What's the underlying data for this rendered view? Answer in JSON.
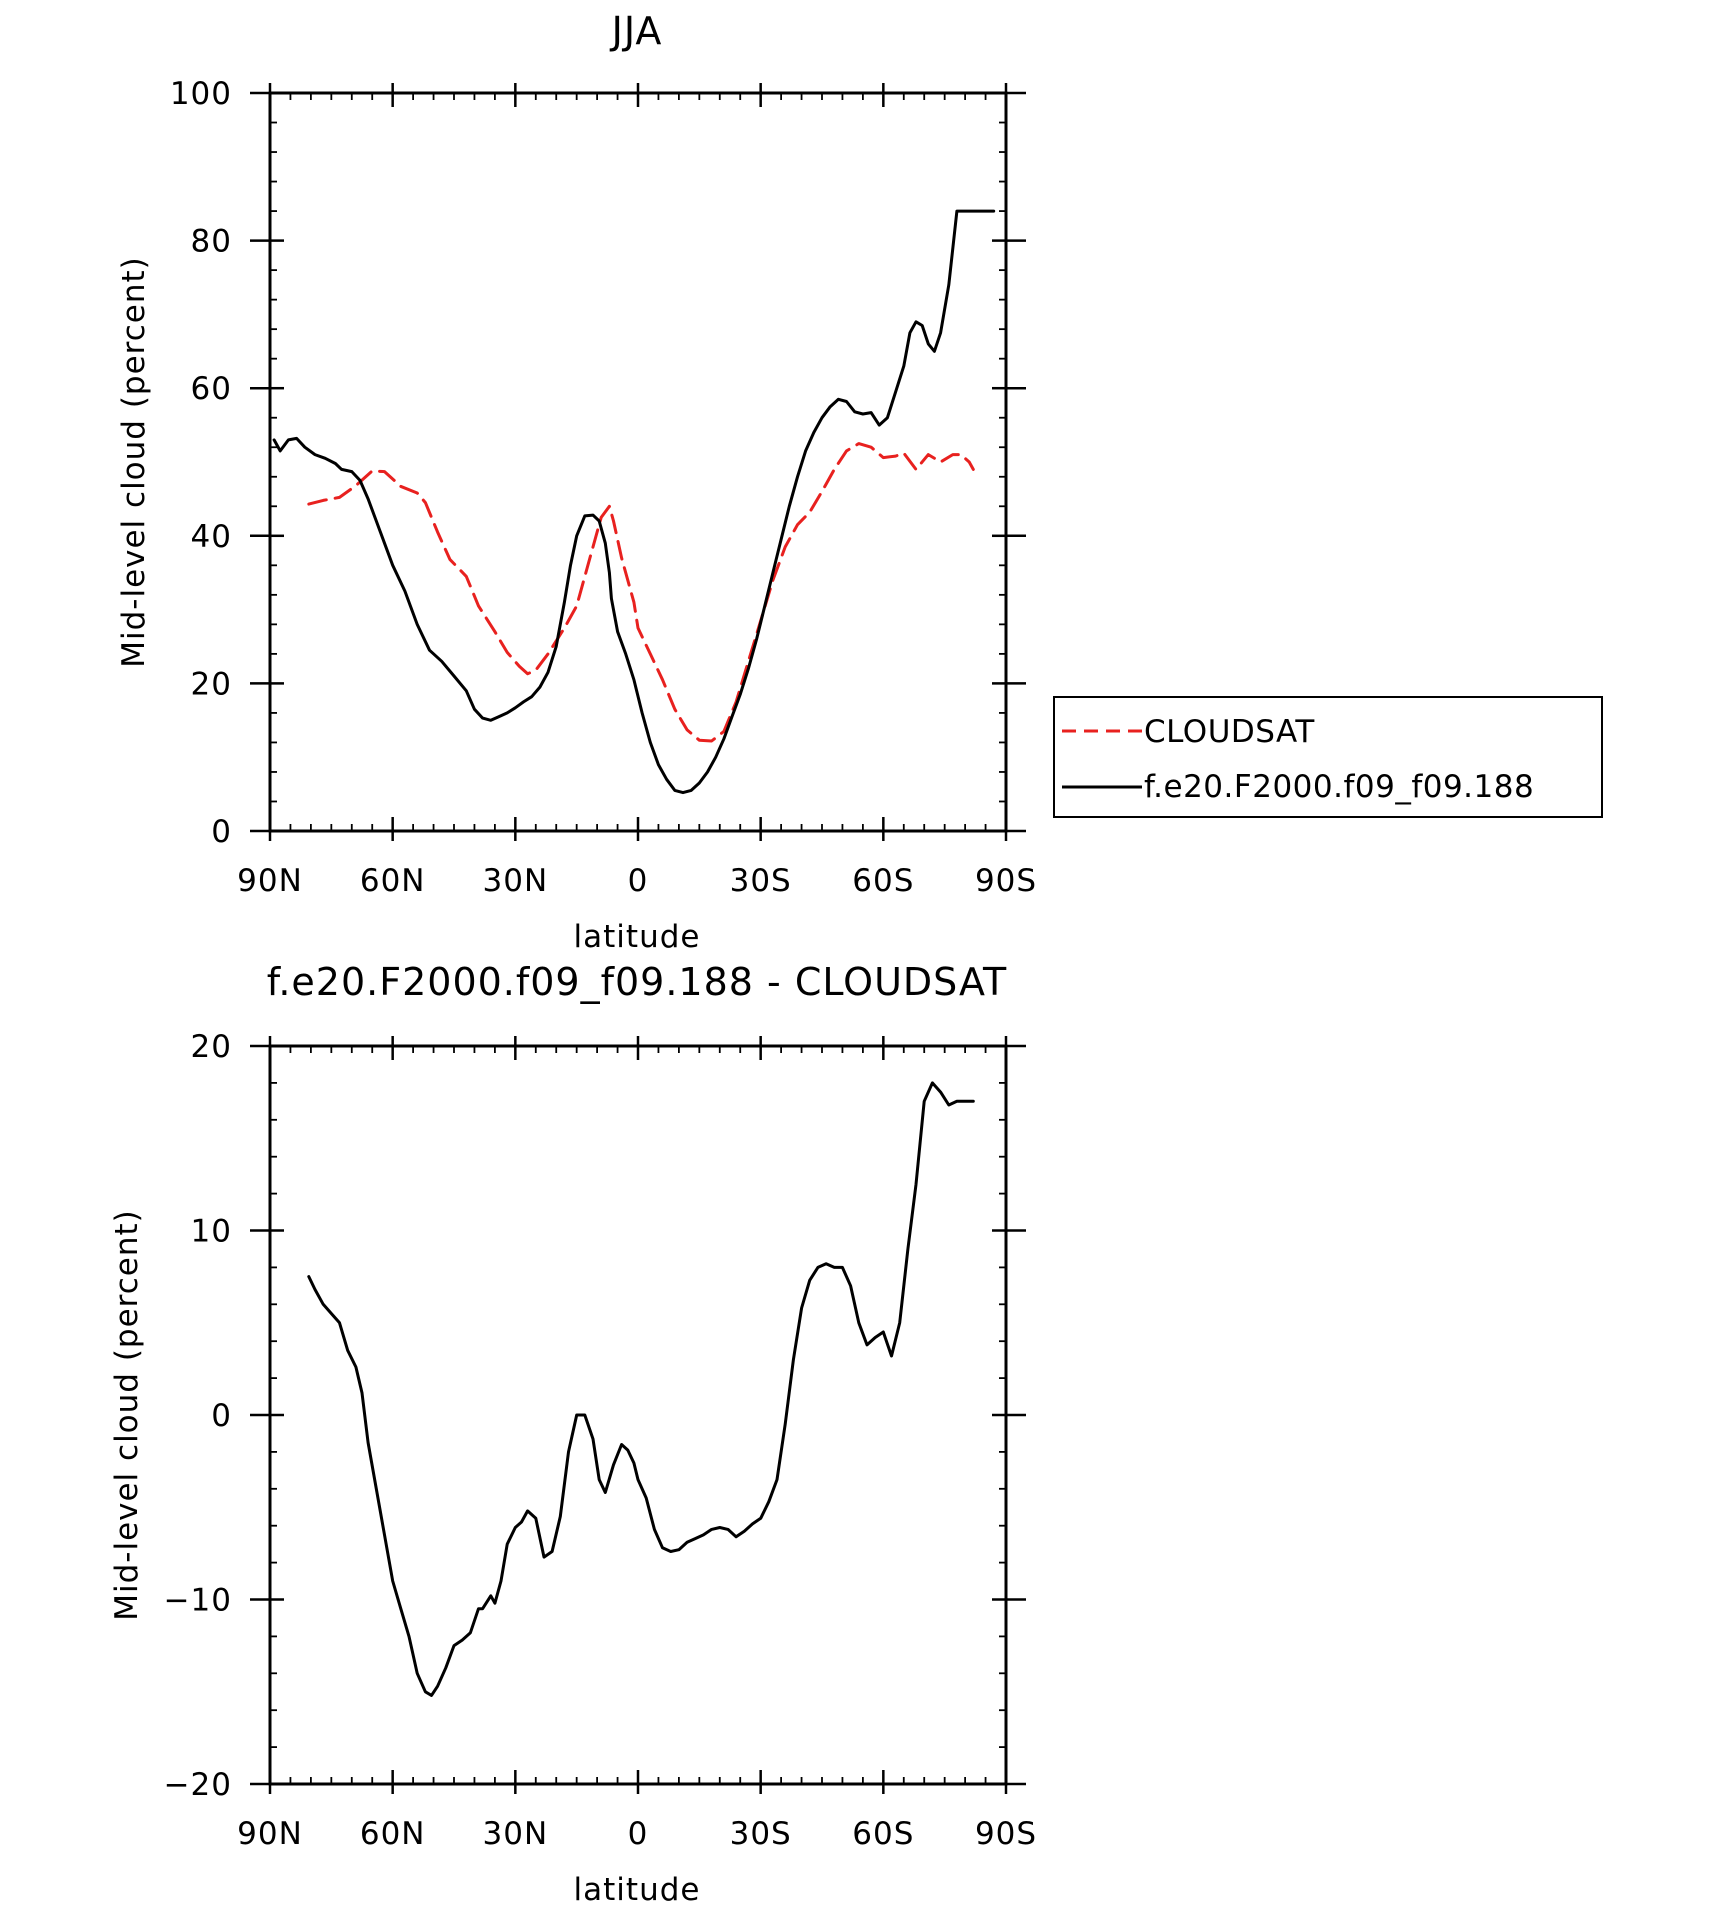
{
  "chart_data": [
    {
      "type": "line",
      "title": "JJA",
      "xlabel": "latitude",
      "ylabel": "Mid-level cloud (percent)",
      "xlim": [
        90,
        -90
      ],
      "ylim": [
        0,
        100
      ],
      "xticks": [
        90,
        60,
        30,
        0,
        -30,
        -60,
        -90
      ],
      "xtick_labels": [
        "90N",
        "60N",
        "30N",
        "0",
        "30S",
        "60S",
        "90S"
      ],
      "yticks": [
        0,
        20,
        40,
        60,
        80,
        100
      ],
      "ytick_labels": [
        "0",
        "20",
        "40",
        "60",
        "80",
        "100"
      ],
      "grid": false,
      "legend": {
        "placement": "right",
        "entries": [
          "CLOUDSAT",
          "f.e20.F2000.f09_f09.188"
        ]
      },
      "series": [
        {
          "name": "CLOUDSAT",
          "color": "#e8211f",
          "dash": true,
          "x": [
            80.5,
            77,
            73,
            69,
            65,
            62,
            58,
            54,
            52,
            49,
            46,
            42,
            39,
            35,
            32,
            29,
            27,
            25,
            22,
            18,
            15,
            12,
            9,
            7,
            6,
            4,
            1,
            0,
            -3,
            -6,
            -9,
            -12,
            -15,
            -18,
            -21,
            -24,
            -27,
            -30,
            -33,
            -36,
            -39,
            -42,
            -45,
            -48,
            -51,
            -54,
            -57,
            -60,
            -63,
            -65,
            -68,
            -71,
            -74,
            -77,
            -79,
            -81,
            -82
          ],
          "y": [
            44.3,
            44.8,
            45.2,
            46.8,
            48.8,
            48.7,
            46.7,
            45.8,
            44.5,
            40.5,
            36.8,
            34.5,
            30.5,
            27.0,
            24.2,
            22.3,
            21.3,
            21.8,
            24.0,
            27.5,
            30.5,
            36.5,
            42.5,
            44.0,
            42.0,
            37.0,
            31.0,
            27.5,
            24.0,
            20.5,
            16.5,
            13.7,
            12.3,
            12.2,
            13.5,
            17.5,
            23.0,
            28.5,
            34.0,
            38.5,
            41.5,
            43.2,
            46.0,
            49.0,
            51.5,
            52.5,
            52.0,
            50.6,
            50.8,
            51.2,
            49.0,
            51.0,
            50.0,
            51.0,
            51.0,
            50.0,
            49.0
          ]
        },
        {
          "name": "f.e20.F2000.f09_f09.188",
          "color": "#000000",
          "dash": false,
          "x": [
            89,
            87.5,
            85.5,
            83.5,
            81.5,
            79,
            76.5,
            74,
            72.5,
            70,
            68,
            66,
            64,
            62,
            60,
            57,
            54,
            51,
            48,
            45,
            42,
            40,
            38,
            36,
            34,
            32,
            30,
            28,
            26,
            24,
            22,
            20,
            18,
            16.5,
            15,
            13,
            11,
            9.5,
            8,
            7,
            6.5,
            5,
            3,
            1,
            -1,
            -3,
            -5,
            -7,
            -9,
            -11,
            -13,
            -15,
            -17,
            -19,
            -21,
            -23,
            -25,
            -27,
            -29,
            -31,
            -33,
            -35,
            -37,
            -39,
            -41,
            -43,
            -45,
            -47,
            -49,
            -51,
            -53,
            -55,
            -57,
            -59,
            -61,
            -63,
            -65,
            -66.5,
            -68,
            -69.5,
            -71,
            -72.5,
            -74,
            -76,
            -78,
            -79.5,
            -81,
            -82.5,
            -84,
            -85.5,
            -87
          ],
          "y": [
            53.0,
            51.5,
            53.0,
            53.2,
            52.0,
            51.0,
            50.5,
            49.8,
            49.0,
            48.7,
            47.5,
            45.0,
            42.0,
            39.0,
            36.0,
            32.5,
            28.0,
            24.5,
            23.0,
            21.0,
            19.0,
            16.5,
            15.3,
            15.0,
            15.5,
            16.0,
            16.7,
            17.5,
            18.2,
            19.5,
            21.5,
            25.0,
            31.0,
            36.0,
            40.0,
            42.7,
            42.8,
            42.0,
            39.0,
            35.0,
            31.5,
            27.0,
            24.0,
            20.5,
            16.0,
            12.0,
            9.0,
            7.0,
            5.5,
            5.2,
            5.5,
            6.5,
            8.0,
            10.0,
            12.5,
            15.5,
            18.5,
            22.0,
            26.0,
            30.5,
            35.0,
            39.5,
            44.0,
            48.0,
            51.5,
            54.0,
            56.0,
            57.5,
            58.5,
            58.2,
            56.8,
            56.5,
            56.7,
            55.0,
            56.0,
            59.5,
            63.0,
            67.5,
            69.0,
            68.5,
            66.0,
            65.0,
            67.5,
            74.0,
            84.0,
            84.0,
            84.0,
            84.0,
            84.0,
            84.0,
            84.0
          ]
        }
      ]
    },
    {
      "type": "line",
      "title": "f.e20.F2000.f09_f09.188 - CLOUDSAT",
      "xlabel": "latitude",
      "ylabel": "Mid-level cloud (percent)",
      "xlim": [
        90,
        -90
      ],
      "ylim": [
        -20,
        20
      ],
      "xticks": [
        90,
        60,
        30,
        0,
        -30,
        -60,
        -90
      ],
      "xtick_labels": [
        "90N",
        "60N",
        "30N",
        "0",
        "30S",
        "60S",
        "90S"
      ],
      "yticks": [
        -20,
        -10,
        0,
        10,
        20
      ],
      "ytick_labels": [
        "−20",
        "−10",
        "0",
        "10",
        "20"
      ],
      "grid": false,
      "series": [
        {
          "color": "#000000",
          "dash": false,
          "x": [
            80.5,
            79,
            77,
            75,
            73,
            71,
            69,
            67.5,
            66,
            64,
            62,
            60,
            58,
            56,
            54,
            52,
            50.5,
            49,
            47,
            45,
            43,
            41,
            39,
            38,
            36,
            35,
            33.5,
            32,
            30,
            28.5,
            27,
            25,
            23,
            21,
            19,
            17,
            15,
            13,
            11,
            9.5,
            8,
            6,
            4,
            2.5,
            1,
            0,
            -2,
            -4,
            -6,
            -8,
            -10,
            -12,
            -14,
            -16,
            -18,
            -20,
            -22,
            -24,
            -26,
            -28,
            -30,
            -32,
            -34,
            -36,
            -38,
            -40,
            -42,
            -44,
            -46,
            -48,
            -50,
            -52,
            -54,
            -56,
            -58,
            -60,
            -62,
            -64,
            -66,
            -68,
            -70,
            -72,
            -74,
            -76,
            -78,
            -80,
            -82
          ],
          "y": [
            7.5,
            6.8,
            6.0,
            5.5,
            5.0,
            3.5,
            2.6,
            1.2,
            -1.5,
            -4.0,
            -6.5,
            -9.0,
            -10.5,
            -12.0,
            -14.0,
            -15.0,
            -15.2,
            -14.7,
            -13.7,
            -12.5,
            -12.2,
            -11.8,
            -10.5,
            -10.5,
            -9.8,
            -10.2,
            -9.0,
            -7.0,
            -6.1,
            -5.8,
            -5.2,
            -5.6,
            -7.7,
            -7.4,
            -5.5,
            -2.0,
            0.0,
            0.0,
            -1.3,
            -3.5,
            -4.2,
            -2.7,
            -1.6,
            -1.9,
            -2.6,
            -3.5,
            -4.5,
            -6.2,
            -7.2,
            -7.4,
            -7.3,
            -6.9,
            -6.7,
            -6.5,
            -6.2,
            -6.1,
            -6.2,
            -6.6,
            -6.3,
            -5.9,
            -5.6,
            -4.7,
            -3.5,
            -0.5,
            3.0,
            5.8,
            7.3,
            8.0,
            8.2,
            8.0,
            8.0,
            7.0,
            5.0,
            3.8,
            4.2,
            4.5,
            3.2,
            5.0,
            9.0,
            12.5,
            17.0,
            18.0,
            17.5,
            16.8,
            17.0,
            17.0,
            17.0
          ]
        }
      ]
    }
  ]
}
